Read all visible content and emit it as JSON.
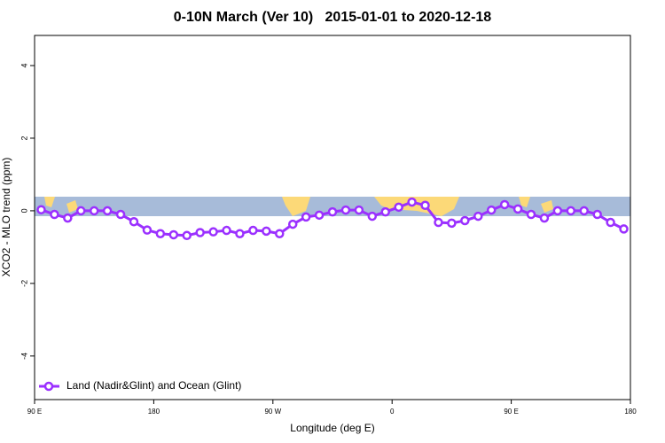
{
  "chart_data": {
    "type": "line",
    "title": "0-10N March (Ver 10)   2015-01-01 to 2020-12-18",
    "x_label": "Longitude (deg E)",
    "y_label": "XCO2 - MLO trend (ppm)",
    "xlim": [
      90,
      540
    ],
    "xticks": [
      {
        "value": 90,
        "label": "90 E"
      },
      {
        "value": 180,
        "label": "180"
      },
      {
        "value": 270,
        "label": "90 W"
      },
      {
        "value": 360,
        "label": "0"
      },
      {
        "value": 450,
        "label": "90 E"
      },
      {
        "value": 540,
        "label": "180"
      }
    ],
    "ylim": [
      -5.2,
      4.83
    ],
    "yticks": [
      4,
      2,
      0,
      -2,
      -4
    ],
    "legend": "bottom-left",
    "x": [
      95,
      105,
      115,
      125,
      135,
      145,
      155,
      165,
      175,
      185,
      195,
      205,
      215,
      225,
      235,
      245,
      255,
      265,
      275,
      285,
      295,
      305,
      315,
      325,
      335,
      345,
      355,
      365,
      375,
      385,
      395,
      405,
      415,
      425,
      435,
      445,
      455,
      465,
      475,
      485,
      495,
      505,
      515,
      525,
      535
    ],
    "series": [
      {
        "name": "Land (Nadir&Glint) and Ocean (Glint)",
        "color": "#9b30ff",
        "values": [
          0.03,
          -0.1,
          -0.2,
          0.0,
          0.0,
          0.0,
          -0.1,
          -0.3,
          -0.53,
          -0.63,
          -0.66,
          -0.68,
          -0.6,
          -0.58,
          -0.54,
          -0.63,
          -0.54,
          -0.56,
          -0.63,
          -0.37,
          -0.17,
          -0.12,
          -0.03,
          0.02,
          0.02,
          -0.15,
          -0.03,
          0.1,
          0.24,
          0.15,
          -0.32,
          -0.34,
          -0.27,
          -0.15,
          0.02,
          0.17,
          0.05,
          -0.1,
          -0.2,
          0.0,
          0.0,
          0.0,
          -0.1,
          -0.32,
          -0.5
        ]
      }
    ]
  }
}
